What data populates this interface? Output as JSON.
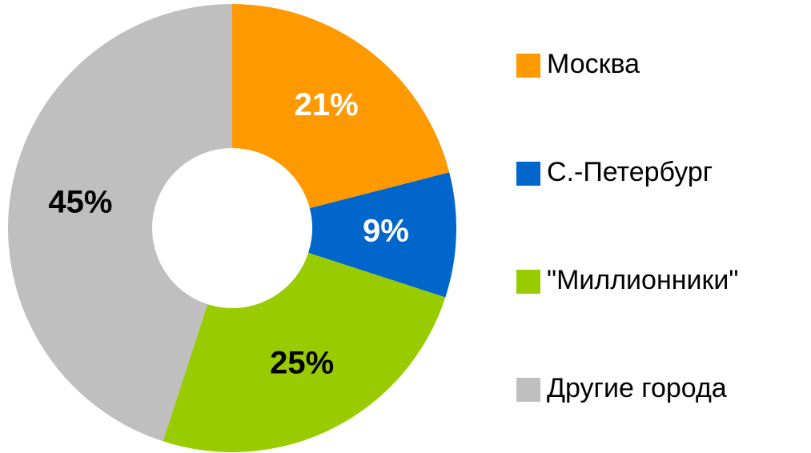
{
  "chart_data": {
    "type": "donut",
    "categories": [
      "Москва",
      "С.-Петербург",
      "\"Миллионники\"",
      "Другие города"
    ],
    "values": [
      21,
      9,
      25,
      45
    ],
    "value_labels": [
      "21%",
      "9%",
      "25%",
      "45%"
    ],
    "colors": [
      "#ff9900",
      "#0066cc",
      "#99cc00",
      "#bfbfbf"
    ],
    "value_label_colors": [
      "#ffffff",
      "#ffffff",
      "#000000",
      "#000000"
    ],
    "legend": "right"
  }
}
